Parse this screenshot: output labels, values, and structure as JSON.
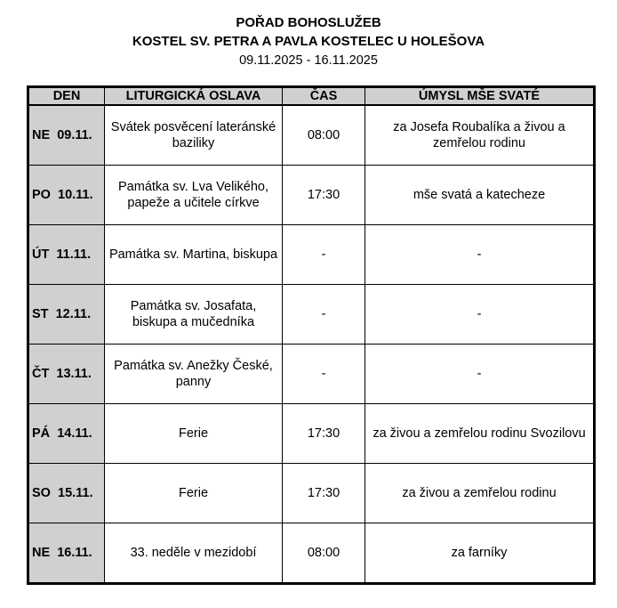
{
  "header": {
    "title": "POŘAD BOHOSLUŽEB",
    "subtitle": "KOSTEL SV. PETRA A PAVLA KOSTELEC U HOLEŠOVA",
    "dates": "09.11.2025 - 16.11.2025"
  },
  "table": {
    "columns": [
      "DEN",
      "LITURGICKÁ OSLAVA",
      "ČAS",
      "ÚMYSL MŠE SVATÉ"
    ],
    "rows": [
      {
        "day": "NE  09.11.",
        "celebration": "Svátek posvěcení lateránské baziliky",
        "time": "08:00",
        "intention": "za Josefa Roubalíka a živou a zemřelou rodinu"
      },
      {
        "day": "PO  10.11.",
        "celebration": "Památka sv. Lva Velikého, papeže a učitele církve",
        "time": "17:30",
        "intention": "mše svatá a katecheze"
      },
      {
        "day": "ÚT  11.11.",
        "celebration": "Památka sv. Martina, biskupa",
        "time": "-",
        "intention": "-"
      },
      {
        "day": "ST  12.11.",
        "celebration": "Památka sv. Josafata, biskupa a mučedníka",
        "time": "-",
        "intention": "-"
      },
      {
        "day": "ČT  13.11.",
        "celebration": "Památka sv. Anežky České, panny",
        "time": "-",
        "intention": "-"
      },
      {
        "day": "PÁ  14.11.",
        "celebration": "Ferie",
        "time": "17:30",
        "intention": "za živou a zemřelou rodinu Svozilovu"
      },
      {
        "day": "SO  15.11.",
        "celebration": "Ferie",
        "time": "17:30",
        "intention": "za živou a zemřelou rodinu"
      },
      {
        "day": "NE  16.11.",
        "celebration": "33. neděle v mezidobí",
        "time": "08:00",
        "intention": "za farníky"
      }
    ]
  }
}
